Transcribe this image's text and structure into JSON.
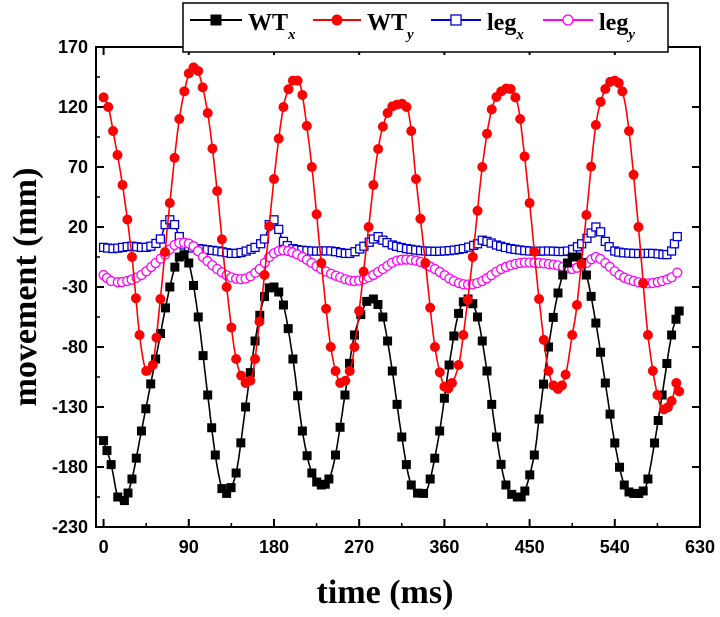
{
  "chart_data": {
    "type": "line",
    "xlabel": "time (ms)",
    "ylabel": "movement (mm)",
    "xlim": [
      -8,
      630
    ],
    "ylim": [
      -230,
      170
    ],
    "xticks": [
      0,
      90,
      180,
      270,
      360,
      450,
      540,
      630
    ],
    "yticks": [
      -230,
      -180,
      -130,
      -80,
      -30,
      20,
      70,
      120,
      170
    ],
    "grid": false,
    "legend_position": "top-right",
    "series": [
      {
        "name": "WTx",
        "label_main": "WT",
        "label_sub": "x",
        "color": "#000000",
        "marker": "filled-square",
        "x": [
          0,
          8,
          15,
          22,
          30,
          40,
          55,
          70,
          80,
          90,
          100,
          110,
          118,
          125,
          130,
          140,
          150,
          160,
          170,
          180,
          190,
          200,
          210,
          220,
          230,
          238,
          245,
          255,
          265,
          278,
          285,
          295,
          305,
          315,
          325,
          338,
          345,
          355,
          365,
          375,
          385,
          395,
          405,
          415,
          425,
          437,
          445,
          455,
          460,
          470,
          480,
          490,
          500,
          510,
          520,
          530,
          540,
          550,
          560,
          570,
          575,
          582,
          590,
          600,
          608
        ],
        "y": [
          -158,
          -178,
          -205,
          -208,
          -190,
          -150,
          -90,
          -30,
          -5,
          -10,
          -55,
          -120,
          -170,
          -198,
          -202,
          -185,
          -130,
          -75,
          -38,
          -30,
          -45,
          -90,
          -150,
          -185,
          -195,
          -190,
          -170,
          -120,
          -70,
          -42,
          -40,
          -55,
          -100,
          -155,
          -195,
          -202,
          -190,
          -150,
          -95,
          -52,
          -40,
          -55,
          -100,
          -155,
          -195,
          -205,
          -200,
          -170,
          -140,
          -80,
          -35,
          -10,
          -5,
          -20,
          -60,
          -110,
          -160,
          -195,
          -202,
          -200,
          -190,
          -160,
          -120,
          -70,
          -50
        ]
      },
      {
        "name": "WTy",
        "label_main": "WT",
        "label_sub": "y",
        "color": "#ff0000",
        "marker": "filled-circle",
        "x": [
          0,
          5,
          10,
          20,
          30,
          38,
          45,
          52,
          60,
          70,
          80,
          90,
          95,
          100,
          110,
          120,
          130,
          140,
          150,
          155,
          160,
          170,
          180,
          190,
          200,
          205,
          210,
          220,
          230,
          240,
          250,
          260,
          265,
          270,
          280,
          290,
          300,
          310,
          320,
          325,
          330,
          340,
          350,
          360,
          368,
          375,
          380,
          390,
          400,
          410,
          420,
          430,
          435,
          440,
          450,
          460,
          470,
          480,
          488,
          495,
          500,
          510,
          520,
          530,
          540,
          548,
          555,
          565,
          575,
          585,
          592,
          600,
          605,
          608
        ],
        "y": [
          128,
          120,
          100,
          55,
          -5,
          -70,
          -100,
          -95,
          -40,
          40,
          110,
          148,
          153,
          150,
          115,
          50,
          -30,
          -90,
          -110,
          -108,
          -90,
          -20,
          60,
          120,
          142,
          142,
          130,
          70,
          -10,
          -80,
          -110,
          -100,
          -80,
          -50,
          20,
          85,
          115,
          122,
          120,
          100,
          60,
          -10,
          -80,
          -113,
          -110,
          -95,
          -70,
          -5,
          70,
          118,
          133,
          135,
          128,
          110,
          40,
          -40,
          -100,
          -115,
          -103,
          -70,
          -45,
          30,
          105,
          135,
          142,
          133,
          100,
          20,
          -70,
          -120,
          -132,
          -125,
          -110,
          -117
        ]
      },
      {
        "name": "legx",
        "label_main": "leg",
        "label_sub": "x",
        "color": "#0000cc",
        "marker": "open-square",
        "x": [
          0,
          10,
          20,
          30,
          40,
          50,
          60,
          65,
          70,
          75,
          80,
          85,
          90,
          100,
          120,
          140,
          160,
          170,
          175,
          180,
          185,
          190,
          200,
          220,
          240,
          260,
          275,
          285,
          290,
          295,
          305,
          320,
          340,
          360,
          380,
          395,
          400,
          405,
          415,
          430,
          450,
          470,
          490,
          505,
          515,
          520,
          525,
          530,
          540,
          560,
          580,
          595,
          600,
          603,
          606
        ],
        "y": [
          3,
          2,
          3,
          4,
          3,
          4,
          10,
          22,
          26,
          22,
          12,
          5,
          3,
          2,
          0,
          -2,
          3,
          10,
          22,
          26,
          18,
          8,
          2,
          0,
          0,
          -2,
          4,
          10,
          12,
          9,
          5,
          2,
          0,
          0,
          2,
          6,
          9,
          8,
          5,
          2,
          0,
          0,
          0,
          6,
          15,
          20,
          16,
          8,
          0,
          -2,
          -2,
          -3,
          0,
          6,
          12
        ]
      },
      {
        "name": "legy",
        "label_main": "leg",
        "label_sub": "y",
        "color": "#ff00ff",
        "marker": "open-circle",
        "x": [
          0,
          8,
          15,
          25,
          40,
          55,
          65,
          75,
          85,
          95,
          105,
          120,
          135,
          150,
          165,
          175,
          185,
          195,
          210,
          230,
          250,
          265,
          280,
          295,
          310,
          330,
          350,
          370,
          385,
          400,
          420,
          440,
          460,
          480,
          495,
          510,
          520,
          530,
          545,
          560,
          575,
          590,
          600,
          606
        ],
        "y": [
          -20,
          -25,
          -26,
          -25,
          -20,
          -10,
          -3,
          5,
          7,
          4,
          -5,
          -15,
          -22,
          -23,
          -15,
          -5,
          0,
          0,
          -5,
          -15,
          -22,
          -25,
          -22,
          -15,
          -8,
          -8,
          -15,
          -25,
          -28,
          -25,
          -15,
          -10,
          -10,
          -12,
          -15,
          -10,
          -5,
          -10,
          -20,
          -25,
          -27,
          -25,
          -22,
          -18
        ]
      }
    ]
  }
}
